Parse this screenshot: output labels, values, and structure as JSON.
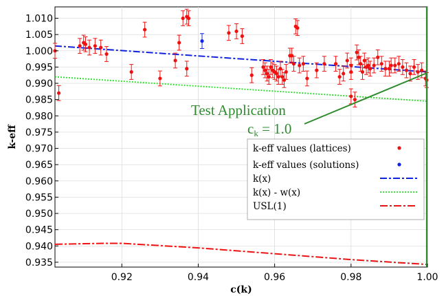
{
  "chart_data": {
    "type": "scatter",
    "xlabel": "c(k)",
    "ylabel": "k-eff",
    "xlim": [
      0.9025,
      1.0
    ],
    "ylim": [
      0.9335,
      1.0135
    ],
    "x_ticks": [
      "0.92",
      "0.94",
      "0.96",
      "0.98",
      "1.00"
    ],
    "x_tick_values": [
      0.92,
      0.94,
      0.96,
      0.98,
      1.0
    ],
    "y_ticks": [
      "0.935",
      "0.940",
      "0.945",
      "0.950",
      "0.955",
      "0.960",
      "0.965",
      "0.970",
      "0.975",
      "0.980",
      "0.985",
      "0.990",
      "0.995",
      "1.000",
      "1.005",
      "1.010"
    ],
    "y_tick_values": [
      0.935,
      0.94,
      0.945,
      0.95,
      0.955,
      0.96,
      0.965,
      0.97,
      0.975,
      0.98,
      0.985,
      0.99,
      0.995,
      1.0,
      1.005,
      1.01
    ],
    "grid": true,
    "legend_position": "lower-right",
    "series": [
      {
        "name": "k-eff values (lattices)",
        "kind": "points",
        "color": "#ee1111",
        "error": 0.0023,
        "points": [
          [
            0.9025,
            1.0
          ],
          [
            0.9035,
            0.987
          ],
          [
            0.909,
            1.0015
          ],
          [
            0.91,
            1.0025
          ],
          [
            0.9105,
            1.002
          ],
          [
            0.9115,
            1.001
          ],
          [
            0.913,
            1.0015
          ],
          [
            0.9145,
            1.001
          ],
          [
            0.916,
            0.999
          ],
          [
            0.9225,
            0.9935
          ],
          [
            0.926,
            1.0065
          ],
          [
            0.93,
            0.9915
          ],
          [
            0.934,
            0.997
          ],
          [
            0.935,
            1.0025
          ],
          [
            0.936,
            1.01
          ],
          [
            0.937,
            1.0105
          ],
          [
            0.9375,
            1.01
          ],
          [
            0.937,
            0.9945
          ],
          [
            0.948,
            1.0055
          ],
          [
            0.95,
            1.006
          ],
          [
            0.9515,
            1.0045
          ],
          [
            0.954,
            0.9925
          ],
          [
            0.957,
            0.995
          ],
          [
            0.9575,
            0.994
          ],
          [
            0.958,
            0.993
          ],
          [
            0.9585,
            0.992
          ],
          [
            0.959,
            0.995
          ],
          [
            0.9595,
            0.994
          ],
          [
            0.96,
            0.9935
          ],
          [
            0.9605,
            0.993
          ],
          [
            0.961,
            0.992
          ],
          [
            0.9615,
            0.9945
          ],
          [
            0.962,
            0.992
          ],
          [
            0.9625,
            0.991
          ],
          [
            0.963,
            0.9935
          ],
          [
            0.964,
            0.9985
          ],
          [
            0.9645,
            0.9985
          ],
          [
            0.965,
            0.996
          ],
          [
            0.9655,
            1.0075
          ],
          [
            0.966,
            1.007
          ],
          [
            0.9665,
            0.9955
          ],
          [
            0.9675,
            0.996
          ],
          [
            0.9685,
            0.9915
          ],
          [
            0.971,
            0.994
          ],
          [
            0.973,
            0.996
          ],
          [
            0.976,
            0.996
          ],
          [
            0.977,
            0.992
          ],
          [
            0.978,
            0.993
          ],
          [
            0.979,
            0.997
          ],
          [
            0.98,
            0.9935
          ],
          [
            0.98,
            0.9955
          ],
          [
            0.98,
            0.986
          ],
          [
            0.981,
            0.985
          ],
          [
            0.9815,
            0.9995
          ],
          [
            0.982,
            0.998
          ],
          [
            0.9825,
            0.996
          ],
          [
            0.983,
            0.9935
          ],
          [
            0.9835,
            0.997
          ],
          [
            0.984,
            0.995
          ],
          [
            0.9845,
            0.9955
          ],
          [
            0.985,
            0.9945
          ],
          [
            0.986,
            0.9955
          ],
          [
            0.987,
            0.998
          ],
          [
            0.988,
            0.996
          ],
          [
            0.989,
            0.9945
          ],
          [
            0.99,
            0.9945
          ],
          [
            0.9905,
            0.9955
          ],
          [
            0.9915,
            0.9955
          ],
          [
            0.9925,
            0.996
          ],
          [
            0.9935,
            0.995
          ],
          [
            0.9945,
            0.994
          ],
          [
            0.9955,
            0.993
          ],
          [
            0.9965,
            0.995
          ],
          [
            0.9975,
            0.9935
          ],
          [
            0.9985,
            0.994
          ],
          [
            0.9995,
            0.9915
          ],
          [
            0.9998,
            0.991
          ]
        ]
      },
      {
        "name": "k-eff values (solutions)",
        "kind": "points",
        "color": "#1122ee",
        "error": 0.0023,
        "points": [
          [
            0.941,
            1.003
          ]
        ]
      },
      {
        "name": "k(x)",
        "kind": "line",
        "color": "#1122dd",
        "dash": "10,3,3,3",
        "width": 2,
        "points": [
          [
            0.9025,
            1.0015
          ],
          [
            1.0,
            0.9935
          ]
        ]
      },
      {
        "name": "k(x) - w(x)",
        "kind": "line",
        "color": "#22dd22",
        "dash": "2,2",
        "width": 1.8,
        "points": [
          [
            0.9025,
            0.992
          ],
          [
            1.0,
            0.9845
          ]
        ]
      },
      {
        "name": "USL(1)",
        "kind": "line",
        "color": "#ee1111",
        "dash": "11,3,3,3",
        "width": 2,
        "points": [
          [
            0.9025,
            0.9405
          ],
          [
            0.915,
            0.9408
          ],
          [
            0.92,
            0.9408
          ],
          [
            0.94,
            0.9394
          ],
          [
            0.96,
            0.9376
          ],
          [
            0.98,
            0.9358
          ],
          [
            1.0,
            0.9343
          ]
        ]
      }
    ],
    "annotation": {
      "title": "Test Application",
      "ck_prefix": "c",
      "ck_sub": "k",
      "ck_suffix": " = 1.0",
      "color": "#2e8b2e"
    },
    "vertical_line": {
      "x": 1.0,
      "color": "#2e8b2e"
    }
  }
}
